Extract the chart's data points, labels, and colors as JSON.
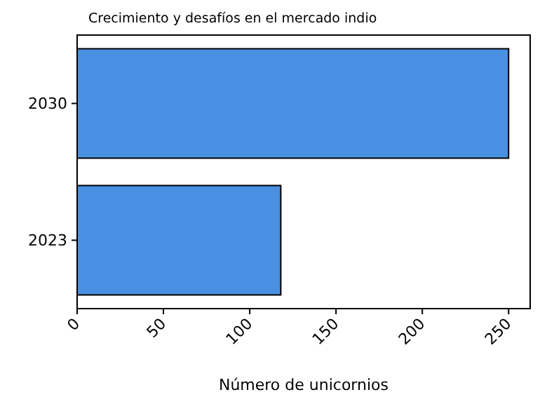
{
  "chart_data": {
    "type": "bar",
    "orientation": "horizontal",
    "title": "Crecimiento y desafíos en el mercado indio",
    "xlabel": "Número de unicornios",
    "categories": [
      "2030",
      "2023"
    ],
    "values": [
      250,
      118
    ],
    "color": "#4a90e2",
    "xlim": [
      0,
      262.5
    ],
    "xticks": [
      0,
      50,
      100,
      150,
      200,
      250
    ],
    "grid": false
  }
}
